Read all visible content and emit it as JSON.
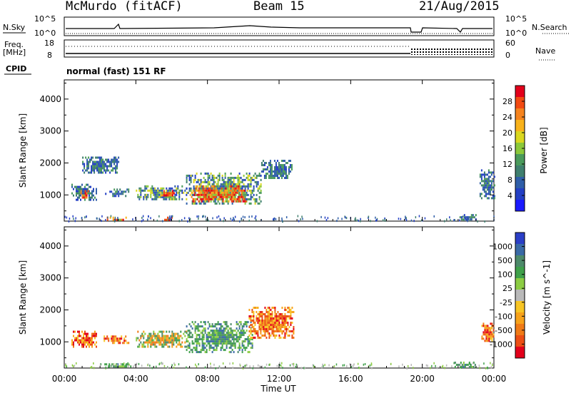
{
  "header": {
    "station": "McMurdo (fitACF)",
    "beam": "Beam 15",
    "date": "21/Aug/2015"
  },
  "aux": {
    "nsky_label": "N.Sky",
    "nsearch_label": "N.Search",
    "nsky_ticks": [
      "10^5",
      "10^0"
    ],
    "nsearch_ticks": [
      "10^5",
      "10^0"
    ],
    "freq_label_line1": "Freq.",
    "freq_label_line2": "[MHz]",
    "freq_ticks": [
      "18",
      "8"
    ],
    "nave_label": "Nave",
    "nave_ticks": [
      "60",
      "0"
    ],
    "cpid_label": "CPID",
    "cpid_text": "normal (fast) 151 RF"
  },
  "chart_data": [
    {
      "type": "heatmap",
      "panel": "power",
      "title": "",
      "ylabel": "Slant Range [km]",
      "xlabel": "",
      "ylim": [
        180,
        4600
      ],
      "xlim": [
        0,
        24
      ],
      "yticks": [
        "1000",
        "2000",
        "3000",
        "4000"
      ],
      "xticks": [
        "00:00",
        "04:00",
        "08:00",
        "12:00",
        "16:00",
        "20:00",
        "00:00"
      ],
      "colorbar": {
        "label": "Power [dB]",
        "ticks": [
          "28",
          "24",
          "20",
          "16",
          "12",
          "8",
          "4"
        ],
        "colors": [
          "#e3001b",
          "#f24a12",
          "#f5831e",
          "#f8b21b",
          "#dad71f",
          "#8bc83a",
          "#4a9a5b",
          "#3f7f6e",
          "#2f5ea8",
          "#233fc4",
          "#1a1aff"
        ]
      },
      "regions": [
        {
          "t_start": 0.4,
          "t_end": 1.8,
          "range_min": 850,
          "range_max": 1350,
          "level": "low"
        },
        {
          "t_start": 0.9,
          "t_end": 1.3,
          "range_min": 900,
          "range_max": 1150,
          "level": "high"
        },
        {
          "t_start": 2.2,
          "t_end": 3.6,
          "range_min": 950,
          "range_max": 1200,
          "level": "low"
        },
        {
          "t_start": 4.0,
          "t_end": 6.8,
          "range_min": 850,
          "range_max": 1300,
          "level": "mid"
        },
        {
          "t_start": 5.3,
          "t_end": 6.2,
          "range_min": 950,
          "range_max": 1150,
          "level": "high"
        },
        {
          "t_start": 6.8,
          "t_end": 11.0,
          "range_min": 700,
          "range_max": 1700,
          "level": "mid"
        },
        {
          "t_start": 7.0,
          "t_end": 10.2,
          "range_min": 800,
          "range_max": 1300,
          "level": "high"
        },
        {
          "t_start": 11.0,
          "t_end": 12.7,
          "range_min": 1500,
          "range_max": 2100,
          "level": "low"
        },
        {
          "t_start": 1.0,
          "t_end": 3.0,
          "range_min": 1700,
          "range_max": 2200,
          "level": "low"
        },
        {
          "t_start": 2.3,
          "t_end": 3.5,
          "range_min": 200,
          "range_max": 320,
          "level": "high"
        },
        {
          "t_start": 5.5,
          "t_end": 6.0,
          "range_min": 200,
          "range_max": 320,
          "level": "high"
        },
        {
          "t_start": 22.0,
          "t_end": 23.0,
          "range_min": 200,
          "range_max": 400,
          "level": "low"
        },
        {
          "t_start": 23.2,
          "t_end": 24.0,
          "range_min": 900,
          "range_max": 1800,
          "level": "low"
        }
      ]
    },
    {
      "type": "heatmap",
      "panel": "velocity",
      "title": "",
      "ylabel": "Slant Range [km]",
      "xlabel": "Time UT",
      "ylim": [
        180,
        4600
      ],
      "xlim": [
        0,
        24
      ],
      "yticks": [
        "1000",
        "2000",
        "3000",
        "4000"
      ],
      "xticks": [
        "00:00",
        "04:00",
        "08:00",
        "12:00",
        "16:00",
        "20:00",
        "00:00"
      ],
      "colorbar": {
        "label": "Velocity [m s^-1]",
        "ticks": [
          "1000",
          "500",
          "100",
          "25",
          "-25",
          "-100",
          "-500",
          "-1000"
        ],
        "colors": [
          "#2b3fc7",
          "#3a6aa6",
          "#4d8a6a",
          "#3fa04a",
          "#8ccc43",
          "#b9b9b9",
          "#f7c524",
          "#f7a21a",
          "#f07a16",
          "#ec4e14",
          "#e3001b"
        ]
      },
      "regions": [
        {
          "t_start": 0.4,
          "t_end": 1.8,
          "range_min": 850,
          "range_max": 1350,
          "level": "neg"
        },
        {
          "t_start": 2.2,
          "t_end": 3.6,
          "range_min": 950,
          "range_max": 1200,
          "level": "neg"
        },
        {
          "t_start": 4.0,
          "t_end": 6.8,
          "range_min": 850,
          "range_max": 1350,
          "level": "mix"
        },
        {
          "t_start": 6.8,
          "t_end": 10.5,
          "range_min": 700,
          "range_max": 1650,
          "level": "pos"
        },
        {
          "t_start": 10.3,
          "t_end": 12.8,
          "range_min": 1100,
          "range_max": 2100,
          "level": "neg"
        },
        {
          "t_start": 2.0,
          "t_end": 3.8,
          "range_min": 200,
          "range_max": 330,
          "level": "pos"
        },
        {
          "t_start": 21.8,
          "t_end": 23.0,
          "range_min": 200,
          "range_max": 380,
          "level": "pos"
        },
        {
          "t_start": 23.3,
          "t_end": 24.0,
          "range_min": 1000,
          "range_max": 1600,
          "level": "neg"
        }
      ]
    }
  ]
}
